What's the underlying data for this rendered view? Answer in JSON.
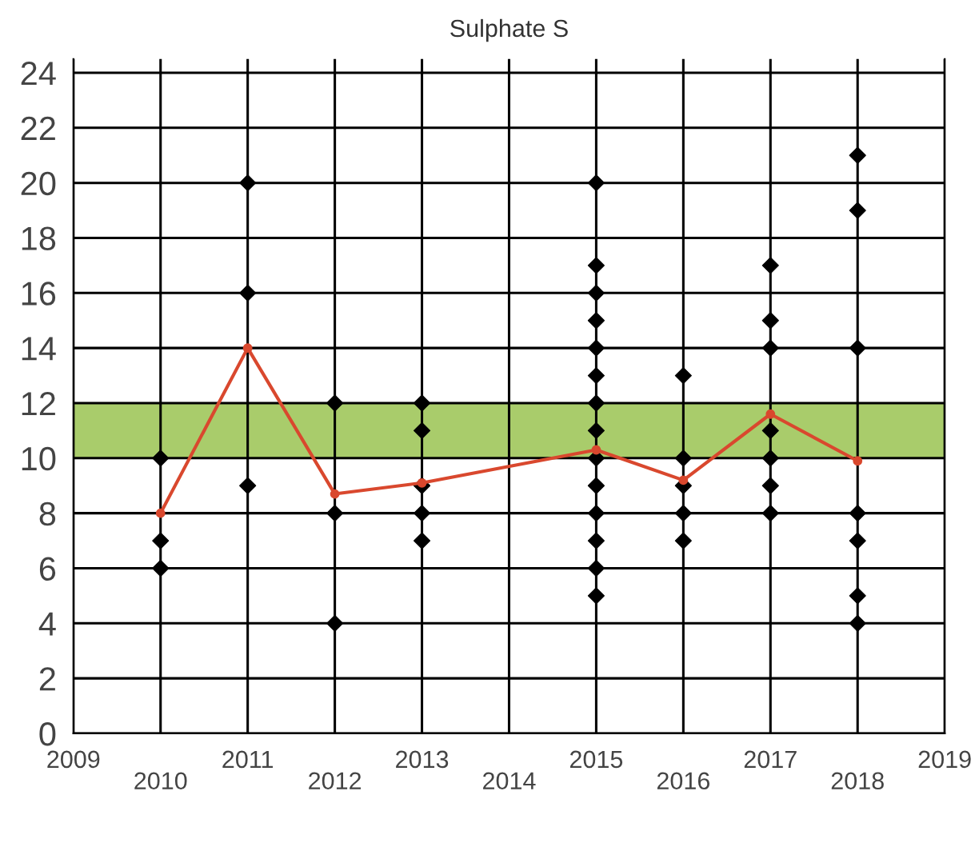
{
  "chart_data": {
    "type": "scatter",
    "title": "Sulphate S",
    "xlim": [
      2009,
      2019
    ],
    "xticks": [
      2009,
      {
        "value": 2010,
        "label": null
      },
      2011,
      {
        "value": 2012,
        "label": null
      },
      2013,
      {
        "value": 2014,
        "label": null
      },
      2015,
      {
        "value": 2016,
        "label": null
      },
      2017,
      {
        "value": 2018,
        "label": null
      },
      2019
    ],
    "x2lim": [
      2009,
      2019
    ],
    "x2ticks": [
      2010,
      2012,
      2014,
      2016,
      2018
    ],
    "ylim": [
      0,
      24.5
    ],
    "yticks": [
      0,
      2,
      4,
      6,
      8,
      10,
      12,
      14,
      16,
      18,
      20,
      22,
      24
    ],
    "grid": true,
    "legend": false,
    "bands": [
      {
        "axis": "y",
        "from": 10,
        "to": 12,
        "color": "#a9cc6b"
      }
    ],
    "series": [
      {
        "color": "#000000",
        "marker": "diamond",
        "x": [
          2010,
          2010,
          2010,
          2011,
          2011,
          2011,
          2012,
          2012,
          2012,
          2013,
          2013,
          2013,
          2013,
          2013,
          2015,
          2015,
          2015,
          2015,
          2015,
          2015,
          2015,
          2015,
          2015,
          2015,
          2015,
          2015,
          2015,
          2015,
          2016,
          2016,
          2016,
          2016,
          2016,
          2017,
          2017,
          2017,
          2017,
          2017,
          2017,
          2017,
          2018,
          2018,
          2018,
          2018,
          2018,
          2018,
          2018
        ],
        "values": [
          10,
          7,
          6,
          20,
          16,
          9,
          12,
          8,
          4,
          12,
          11,
          9,
          8,
          7,
          20,
          17,
          16,
          15,
          14,
          13,
          12,
          11,
          10,
          9,
          8,
          7,
          6,
          5,
          13,
          10,
          9,
          8,
          7,
          17,
          15,
          14,
          11,
          10,
          9,
          8,
          21,
          19,
          14,
          8,
          7,
          5,
          4
        ]
      },
      {
        "type": "line",
        "color": "#d9482e",
        "marker": "circle",
        "line_style": "solid",
        "x": [
          2010,
          2011,
          2012,
          2013,
          2015,
          2016,
          2017,
          2018
        ],
        "values": [
          8,
          14,
          8.7,
          9.1,
          10.3,
          9.2,
          11.6,
          9.9
        ]
      }
    ]
  }
}
